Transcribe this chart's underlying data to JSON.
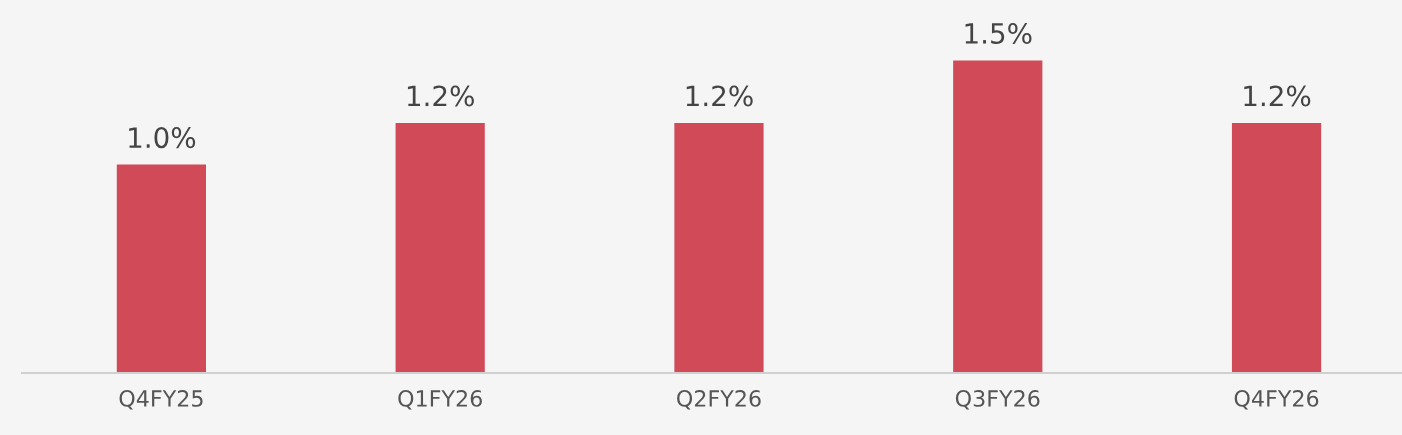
{
  "chart_data": {
    "type": "bar",
    "categories": [
      "Q4FY25",
      "Q1FY26",
      "Q2FY26",
      "Q3FY26",
      "Q4FY26"
    ],
    "values": [
      1.0,
      1.2,
      1.2,
      1.5,
      1.2
    ],
    "value_labels": [
      "1.0%",
      "1.2%",
      "1.2%",
      "1.5%",
      "1.2%"
    ],
    "color": "#d04a58",
    "ylim": [
      0,
      1.79
    ],
    "grid": false,
    "legend": false
  }
}
